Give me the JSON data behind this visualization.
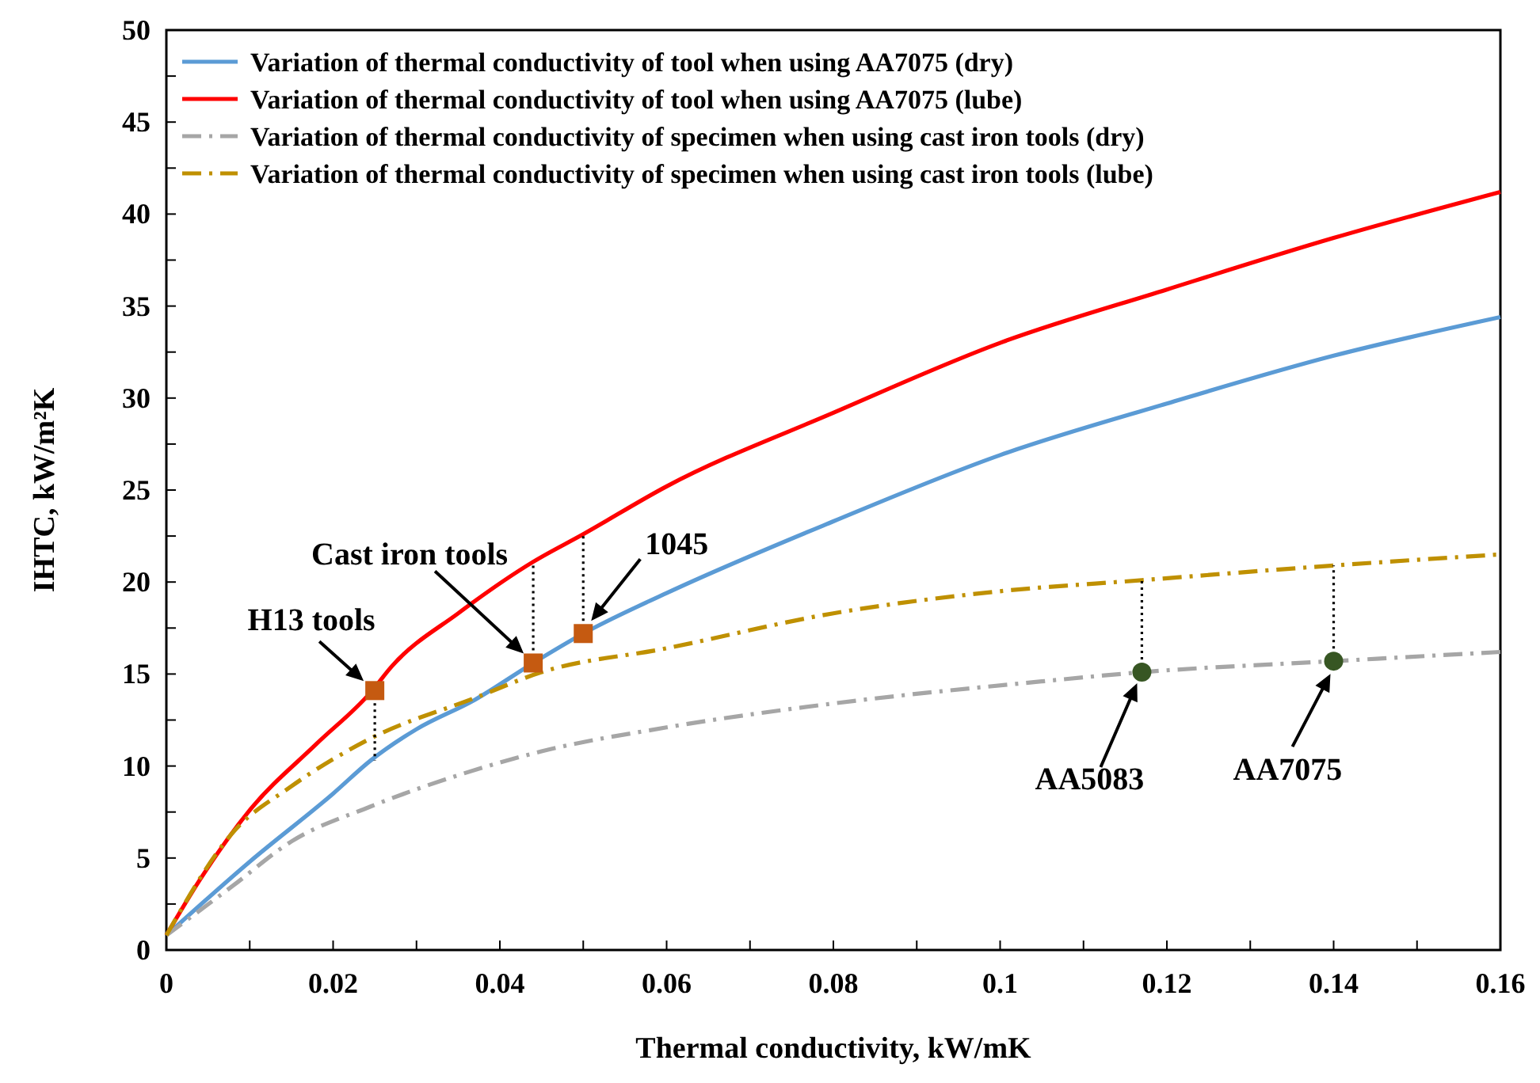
{
  "chart_data": {
    "type": "line",
    "xlabel": "Thermal conductivity, kW/mK",
    "ylabel": "IHTC, kW/m²K",
    "xlim": [
      0,
      0.16
    ],
    "ylim": [
      0,
      50
    ],
    "xticks": [
      0,
      {
        "value": 0.01,
        "label": null
      },
      0.02,
      {
        "value": 0.03,
        "label": null
      },
      0.04,
      {
        "value": 0.05,
        "label": null
      },
      0.06,
      {
        "value": 0.07,
        "label": null
      },
      0.08,
      {
        "value": 0.09,
        "label": null
      },
      0.1,
      {
        "value": 0.11,
        "label": null
      },
      0.12,
      {
        "value": 0.13,
        "label": null
      },
      0.14,
      {
        "value": 0.15,
        "label": null
      },
      0.16
    ],
    "yticks": [
      0,
      {
        "value": 2.5,
        "label": null
      },
      5,
      {
        "value": 7.5,
        "label": null
      },
      10,
      {
        "value": 12.5,
        "label": null
      },
      15,
      {
        "value": 17.5,
        "label": null
      },
      20,
      {
        "value": 22.5,
        "label": null
      },
      25,
      {
        "value": 27.5,
        "label": null
      },
      30,
      {
        "value": 32.5,
        "label": null
      },
      35,
      {
        "value": 37.5,
        "label": null
      },
      40,
      {
        "value": 42.5,
        "label": null
      },
      45,
      {
        "value": 47.5,
        "label": null
      },
      50
    ],
    "legend": "top left",
    "series": [
      {
        "name": "Variation of thermal conductivity of tool when using AA7075 (dry)",
        "color": "#5b9bd5",
        "line_style": "solid",
        "x": [
          0,
          0.01,
          0.02,
          0.0245,
          0.03,
          0.037,
          0.044,
          0.05,
          0.06,
          0.08,
          0.1,
          0.12,
          0.14,
          0.16
        ],
        "values": [
          0.8,
          4.8,
          8.5,
          10.3,
          12.0,
          13.6,
          15.6,
          17.2,
          19.4,
          23.3,
          26.9,
          29.7,
          32.3,
          34.4
        ]
      },
      {
        "name": "Variation of thermal conductivity of tool when using AA7075 (lube)",
        "color": "#ff0000",
        "line_style": "solid",
        "x": [
          0,
          0.004,
          0.01,
          0.018,
          0.0245,
          0.027,
          0.035,
          0.044,
          0.05,
          0.06,
          0.08,
          0.1,
          0.12,
          0.14,
          0.16
        ],
        "values": [
          0.8,
          3.8,
          7.6,
          11.2,
          14.0,
          15.4,
          18.3,
          21.1,
          22.6,
          25.2,
          29.2,
          33.0,
          35.9,
          38.7,
          41.2
        ]
      },
      {
        "name": "Variation of thermal conductivity of specimen when using cast iron tools (dry)",
        "color": "#a6a6a6",
        "line_style": "dashed",
        "x": [
          0,
          0.008,
          0.015,
          0.0245,
          0.035,
          0.045,
          0.06,
          0.08,
          0.105,
          0.117,
          0.14,
          0.16
        ],
        "values": [
          0.8,
          3.5,
          5.9,
          7.8,
          9.5,
          10.8,
          12.1,
          13.4,
          14.6,
          15.1,
          15.7,
          16.2
        ]
      },
      {
        "name": "Variation of thermal conductivity of specimen when using cast iron tools (lube)",
        "color": "#bf9000",
        "line_style": "dashed",
        "x": [
          0,
          0.008,
          0.015,
          0.0245,
          0.037,
          0.045,
          0.06,
          0.08,
          0.1,
          0.117,
          0.14,
          0.16
        ],
        "values": [
          0.8,
          6.4,
          8.9,
          11.5,
          13.7,
          15.1,
          16.4,
          18.3,
          19.5,
          20.1,
          20.9,
          21.5
        ]
      },
      {
        "type": "line",
        "color": "#000000",
        "line_style": "dotted",
        "x": [
          0.025,
          0.025
        ],
        "values": [
          14.1,
          10.3
        ]
      },
      {
        "type": "line",
        "color": "#000000",
        "line_style": "dotted",
        "x": [
          0.044,
          0.044
        ],
        "values": [
          15.6,
          21.1
        ]
      },
      {
        "type": "line",
        "color": "#000000",
        "line_style": "dotted",
        "x": [
          0.05,
          0.05
        ],
        "values": [
          17.2,
          22.6
        ]
      },
      {
        "type": "line",
        "color": "#000000",
        "line_style": "dotted",
        "x": [
          0.117,
          0.117
        ],
        "values": [
          15.1,
          20.1
        ]
      },
      {
        "type": "line",
        "color": "#000000",
        "line_style": "dotted",
        "x": [
          0.14,
          0.14
        ],
        "values": [
          15.7,
          20.9
        ]
      },
      {
        "type": "scatter",
        "marker": "square",
        "color": "#c55a11",
        "x": [
          0.025,
          0.044,
          0.05
        ],
        "values": [
          14.1,
          15.6,
          17.2
        ]
      },
      {
        "type": "scatter",
        "marker": "circle",
        "color": "#375623",
        "x": [
          0.117,
          0.14
        ],
        "values": [
          15.1,
          15.7
        ]
      }
    ],
    "annotations": [
      {
        "text": "H13 tools",
        "x": 0.025,
        "y": 14.1
      },
      {
        "text": "Cast iron tools",
        "x": 0.044,
        "y": 15.6
      },
      {
        "text": "1045",
        "x": 0.05,
        "y": 17.2
      },
      {
        "text": "AA5083",
        "x": 0.117,
        "y": 15.1
      },
      {
        "text": "AA7075",
        "x": 0.14,
        "y": 15.7
      }
    ]
  }
}
